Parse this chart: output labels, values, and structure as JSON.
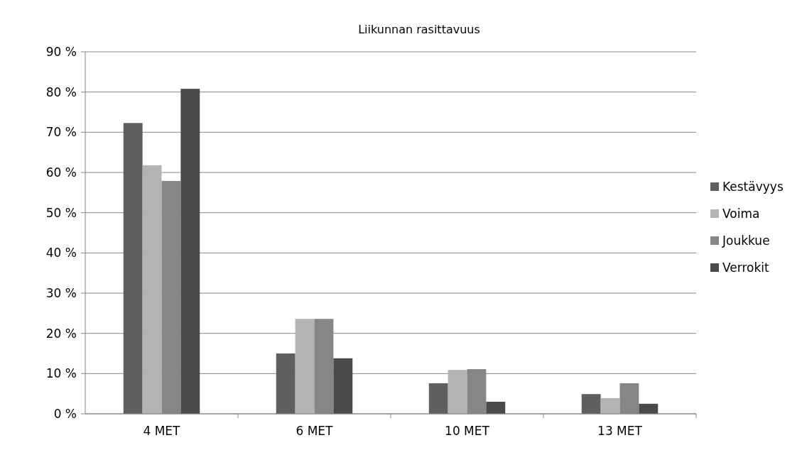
{
  "chart_data": {
    "type": "bar",
    "title": "Liikunnan rasittavuus",
    "categories": [
      "4 MET",
      "6 MET",
      "10 MET",
      "13 MET"
    ],
    "series": [
      {
        "name": "Kestävyys",
        "color": "#5f5f5f",
        "values": [
          72.3,
          15.0,
          7.6,
          4.9
        ]
      },
      {
        "name": "Voima",
        "color": "#b3b3b3",
        "values": [
          61.8,
          23.6,
          10.9,
          3.9
        ]
      },
      {
        "name": "Joukkue",
        "color": "#868686",
        "values": [
          57.9,
          23.6,
          11.1,
          7.6
        ]
      },
      {
        "name": "Verrokit",
        "color": "#4a4a4a",
        "values": [
          80.8,
          13.8,
          3.0,
          2.5
        ]
      }
    ],
    "ylim": [
      0,
      90
    ],
    "yticks": [
      {
        "value": 0,
        "label": "0 %"
      },
      {
        "value": 10,
        "label": "10 %"
      },
      {
        "value": 20,
        "label": "20 %"
      },
      {
        "value": 30,
        "label": "30 %"
      },
      {
        "value": 40,
        "label": "40 %"
      },
      {
        "value": 50,
        "label": "50 %"
      },
      {
        "value": 60,
        "label": "60 %"
      },
      {
        "value": 70,
        "label": "70 %"
      },
      {
        "value": 80,
        "label": "80 %"
      },
      {
        "value": 90,
        "label": "90 %"
      }
    ],
    "grid": "y",
    "legend": "right"
  }
}
